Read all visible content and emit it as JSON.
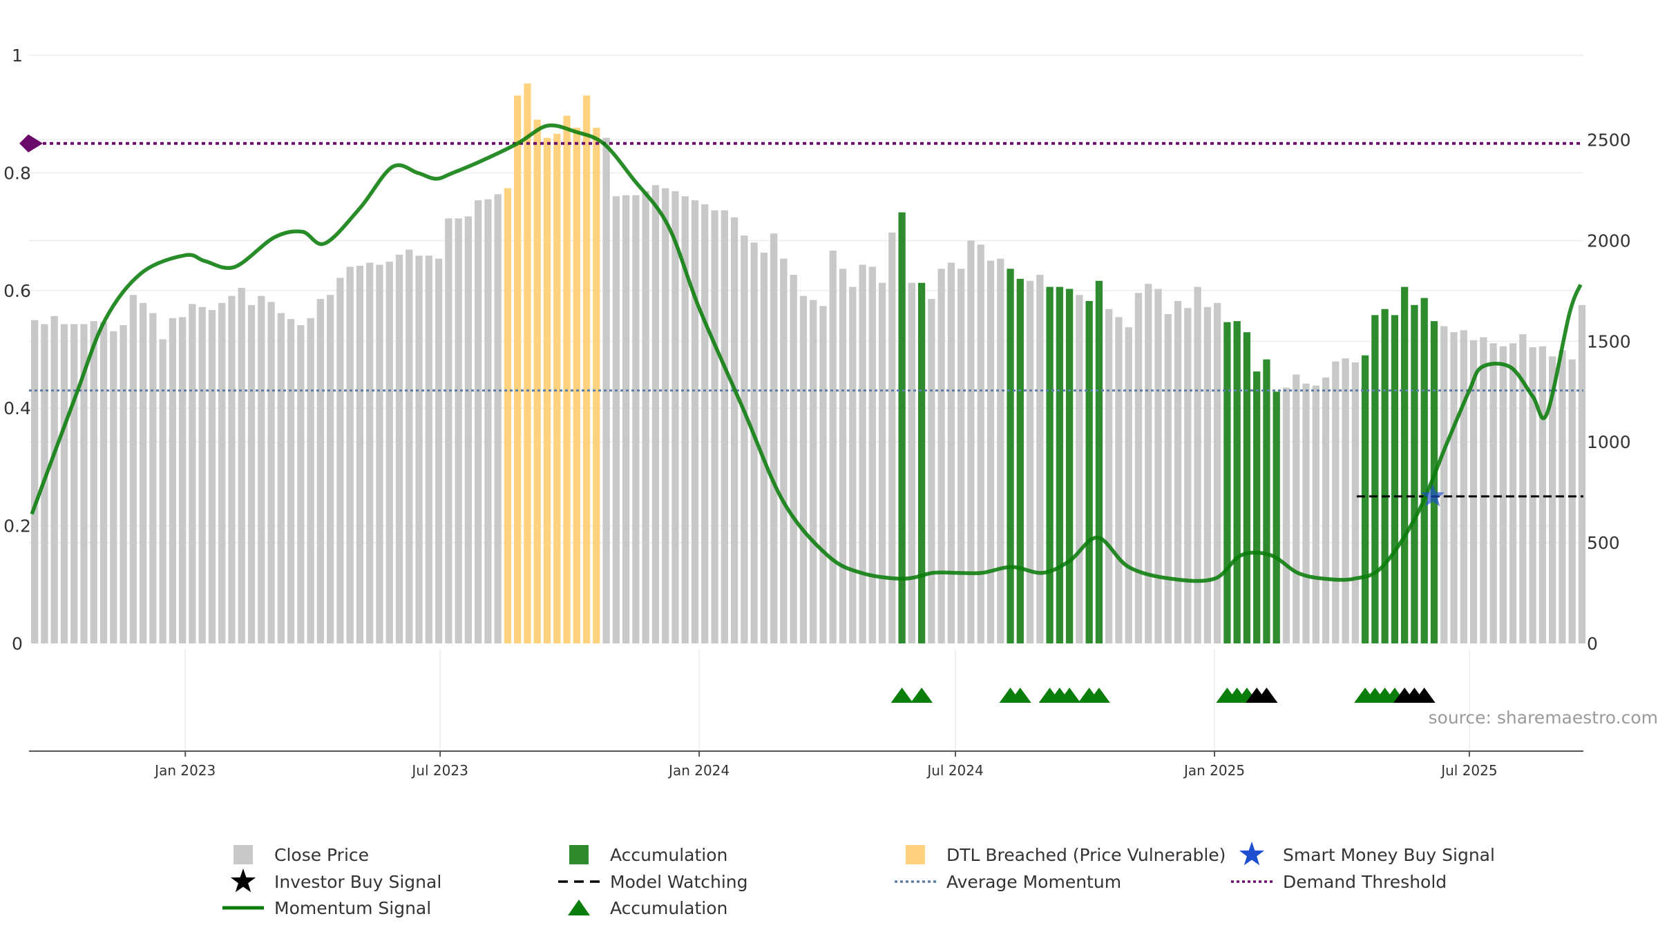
{
  "source_text": "source: sharemaestro.com",
  "colors": {
    "close_price": "#c8c8c8",
    "accumulation_bar": "#2e8b2e",
    "dtl_breached": "#ffd27f",
    "momentum": "#0a7d0a",
    "average_momentum": "#5b7fa6",
    "demand_threshold": "#6a0a6a",
    "smart_money": "#1f4fd1",
    "investor_buy": "#000000",
    "model_watching": "#000000",
    "accumulation_marker": "#0a7d0a",
    "grid": "#ebebeb"
  },
  "chart_data": {
    "type": "bar",
    "left_axis": {
      "ticks": [
        0,
        0.2,
        0.4,
        0.6,
        0.8,
        1
      ],
      "tick_labels": [
        "0",
        "0.2",
        "0.4",
        "0.6",
        "0.8",
        "1"
      ],
      "range": [
        0,
        1
      ]
    },
    "right_axis": {
      "ticks": [
        0,
        500,
        1000,
        1500,
        2000,
        2500
      ],
      "tick_labels": [
        "0",
        "500",
        "1000",
        "1500",
        "2000",
        "2500"
      ],
      "range": [
        0,
        2920
      ]
    },
    "x_axis": {
      "ticks": [
        "2023-01-01",
        "2023-07-01",
        "2024-01-01",
        "2024-07-01",
        "2025-01-01",
        "2025-07-01"
      ],
      "tick_labels": [
        "Jan 2023",
        "Jul 2023",
        "Jan 2024",
        "Jul 2024",
        "Jan 2025",
        "Jul 2025"
      ],
      "range": [
        "2022-09-12",
        "2025-09-20"
      ]
    },
    "close_price": {
      "start": "2022-09-16",
      "interval_days": 7,
      "values": [
        1605,
        1585,
        1625,
        1585,
        1585,
        1585,
        1600,
        1595,
        1550,
        1580,
        1730,
        1690,
        1640,
        1510,
        1615,
        1620,
        1685,
        1670,
        1655,
        1690,
        1725,
        1765,
        1680,
        1725,
        1695,
        1640,
        1610,
        1580,
        1615,
        1710,
        1730,
        1815,
        1870,
        1875,
        1890,
        1880,
        1895,
        1930,
        1955,
        1925,
        1925,
        1910,
        2110,
        2110,
        2120,
        2200,
        2205,
        2230,
        2260,
        2720,
        2780,
        2600,
        2510,
        2530,
        2620,
        2560,
        2720,
        2560,
        2510,
        2220,
        2225,
        2225,
        2245,
        2275,
        2260,
        2245,
        2220,
        2200,
        2180,
        2150,
        2150,
        2115,
        2025,
        1990,
        1940,
        2035,
        1910,
        1830,
        1725,
        1705,
        1675,
        1950,
        1860,
        1770,
        1880,
        1870,
        1790,
        2040,
        2140,
        1790,
        1790,
        1710,
        1860,
        1890,
        1860,
        2000,
        1980,
        1900,
        1910,
        1860,
        1810,
        1800,
        1830,
        1770,
        1770,
        1760,
        1730,
        1700,
        1800,
        1660,
        1620,
        1570,
        1740,
        1785,
        1760,
        1635,
        1700,
        1665,
        1770,
        1670,
        1690,
        1595,
        1600,
        1545,
        1350,
        1410,
        1250,
        1270,
        1335,
        1290,
        1280,
        1320,
        1400,
        1415,
        1395,
        1430,
        1630,
        1660,
        1630,
        1770,
        1680,
        1715,
        1600,
        1575,
        1545,
        1555,
        1505,
        1520,
        1490,
        1475,
        1490,
        1535,
        1470,
        1475,
        1425,
        1455,
        1410,
        1680
      ],
      "accumulation_weeks": [
        "2024-05-24",
        "2024-06-07",
        "2024-08-09",
        "2024-08-16",
        "2024-09-06",
        "2024-09-13",
        "2024-09-20",
        "2024-10-04",
        "2024-10-11",
        "2025-01-10",
        "2025-01-17",
        "2025-01-24",
        "2025-01-31",
        "2025-02-07",
        "2025-02-14",
        "2025-04-18",
        "2025-04-25",
        "2025-05-02",
        "2025-05-09",
        "2025-05-16",
        "2025-05-23",
        "2025-05-30",
        "2025-06-06"
      ],
      "dtl_breached_weeks": [
        "2023-08-18",
        "2023-08-25",
        "2023-09-01",
        "2023-09-08",
        "2023-09-15",
        "2023-09-22",
        "2023-09-29",
        "2023-10-06",
        "2023-10-13",
        "2023-10-20"
      ]
    },
    "momentum_signal": {
      "x": [
        "2022-09-14",
        "2022-10-15",
        "2022-11-05",
        "2022-12-01",
        "2023-01-01",
        "2023-01-15",
        "2023-02-05",
        "2023-03-05",
        "2023-03-25",
        "2023-04-10",
        "2023-05-05",
        "2023-05-28",
        "2023-06-15",
        "2023-06-28",
        "2023-07-10",
        "2023-07-30",
        "2023-08-25",
        "2023-09-15",
        "2023-10-05",
        "2023-10-25",
        "2023-11-15",
        "2023-12-10",
        "2024-01-01",
        "2024-02-01",
        "2024-03-01",
        "2024-04-01",
        "2024-04-25",
        "2024-05-25",
        "2024-06-15",
        "2024-07-01",
        "2024-07-20",
        "2024-08-10",
        "2024-09-01",
        "2024-09-20",
        "2024-10-10",
        "2024-11-01",
        "2024-12-01",
        "2025-01-01",
        "2025-01-20",
        "2025-02-10",
        "2025-03-01",
        "2025-03-20",
        "2025-04-10",
        "2025-04-30",
        "2025-05-25",
        "2025-06-15",
        "2025-07-01",
        "2025-07-10",
        "2025-07-30",
        "2025-08-15",
        "2025-08-25",
        "2025-09-10",
        "2025-09-18"
      ],
      "y": [
        0.22,
        0.42,
        0.55,
        0.63,
        0.66,
        0.65,
        0.64,
        0.69,
        0.7,
        0.68,
        0.74,
        0.81,
        0.8,
        0.79,
        0.8,
        0.82,
        0.85,
        0.88,
        0.87,
        0.85,
        0.79,
        0.71,
        0.57,
        0.4,
        0.24,
        0.15,
        0.12,
        0.11,
        0.12,
        0.12,
        0.12,
        0.13,
        0.12,
        0.14,
        0.18,
        0.13,
        0.11,
        0.11,
        0.15,
        0.15,
        0.12,
        0.11,
        0.11,
        0.13,
        0.22,
        0.34,
        0.43,
        0.47,
        0.47,
        0.42,
        0.39,
        0.56,
        0.61
      ]
    },
    "average_momentum": 0.43,
    "demand_threshold": 0.85,
    "model_watching": {
      "from": "2025-04-12",
      "to": "2025-09-20",
      "value": 0.25
    },
    "smart_money_buy_signal": [
      {
        "x": "2025-06-05",
        "y": 0.25
      }
    ],
    "accumulation_markers": [
      "2024-05-24",
      "2024-06-07",
      "2024-08-09",
      "2024-08-16",
      "2024-09-06",
      "2024-09-13",
      "2024-09-20",
      "2024-10-04",
      "2024-10-11",
      "2025-01-10",
      "2025-01-17",
      "2025-01-24",
      "2025-04-18",
      "2025-04-25",
      "2025-05-02",
      "2025-05-09"
    ],
    "investor_buy_markers": [
      "2025-01-31",
      "2025-02-07",
      "2025-05-16",
      "2025-05-23",
      "2025-05-30"
    ],
    "legend": [
      [
        "Close Price",
        "Accumulation",
        "DTL Breached (Price Vulnerable)",
        "Smart Money Buy Signal"
      ],
      [
        "Investor Buy Signal",
        "Model Watching",
        "Average Momentum",
        "Demand Threshold"
      ],
      [
        "Momentum Signal",
        "Accumulation"
      ]
    ],
    "legend_keys": [
      [
        "close_price",
        "accumulation_bar",
        "dtl_breached",
        "smart_money"
      ],
      [
        "investor_buy",
        "model_watching",
        "average_momentum",
        "demand_threshold"
      ],
      [
        "momentum",
        "accumulation_marker"
      ]
    ],
    "legend_position": "bottom"
  }
}
